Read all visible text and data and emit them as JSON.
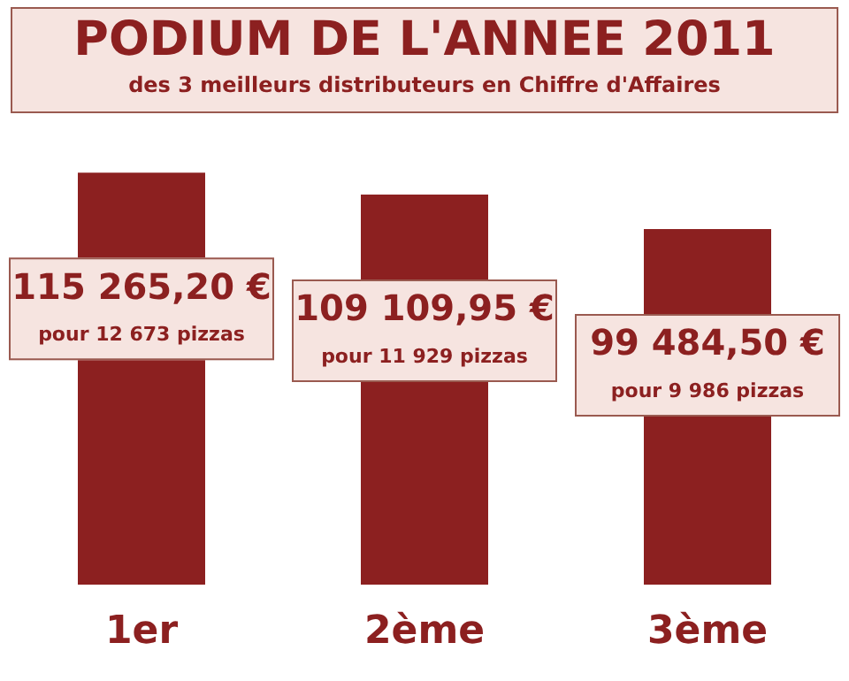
{
  "chart_data": {
    "type": "bar",
    "title": "PODIUM DE L'ANNEE 2011",
    "subtitle": "des 3 meilleurs distributeurs en Chiffre d'Affaires",
    "categories": [
      "1er",
      "2ème",
      "3ème"
    ],
    "values": [
      115265.2,
      109109.95,
      99484.5
    ],
    "value_labels": [
      "115 265,20 €",
      "109 109,95 €",
      "99 484,50 €"
    ],
    "annotations": [
      "pour 12 673 pizzas",
      "pour 11 929 pizzas",
      "pour 9 986 pizzas"
    ],
    "color": "#8c2020",
    "grid": false,
    "legend": false
  }
}
